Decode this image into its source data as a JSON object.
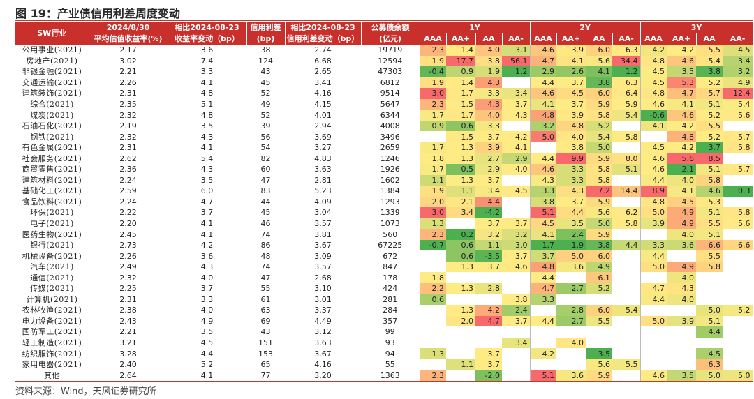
{
  "title": "图 19：产业债信用利差周度变动",
  "source": "资料来源：Wind，天风证券研究所",
  "colors": {
    "header_bg": "#c9302c",
    "accent_rule": "#c0392b",
    "scale_min": "#4cb050",
    "scale_mid": "#ffeb84",
    "scale_max": "#f8696b"
  },
  "headers": {
    "industry": "SW行业",
    "date_line1": "2024/8/30",
    "date_line2": "平均估值收益率(%)",
    "yield_change_line1": "相比2024-08-23",
    "yield_change_line2": "收益率变动（bp）",
    "spread_line1": "信用利差",
    "spread_line2": "(bp)",
    "spread_change_line1": "相比2024-08-23",
    "spread_change_line2": "信用利差变动（bp）",
    "balance_line1": "公募债余额",
    "balance_line2": "(亿元)",
    "tenors": [
      "1Y",
      "2Y",
      "3Y"
    ],
    "ratings": [
      "AAA",
      "AA+",
      "AA",
      "AA-"
    ]
  },
  "rows": [
    {
      "industry": "公用事业(2021)",
      "yield": "2.17",
      "yield_chg": "3.6",
      "spread": "38",
      "spread_chg": "2.74",
      "balance": "19719",
      "m1": [
        "2.3",
        "1.4",
        "4.0",
        "3.1"
      ],
      "m2": [
        "4.6",
        "3.9",
        "6.0",
        "6.3"
      ],
      "m3": [
        "4.2",
        "4.2",
        "5.5",
        "4.5"
      ]
    },
    {
      "industry": "房地产(2021)",
      "yield": "3.02",
      "yield_chg": "7.4",
      "spread": "124",
      "spread_chg": "6.68",
      "balance": "12594",
      "m1": [
        "1.9",
        "17.7",
        "3.8",
        "56.1"
      ],
      "m2": [
        "4.7",
        "4.1",
        "5.6",
        "34.4"
      ],
      "m3": [
        "4.8",
        "4.6",
        "5.4",
        "3.4"
      ]
    },
    {
      "industry": "非银金融(2021)",
      "yield": "2.21",
      "yield_chg": "3.3",
      "spread": "43",
      "spread_chg": "2.65",
      "balance": "47303",
      "m1": [
        "-0.4",
        "0.9",
        "1.9",
        "1.2"
      ],
      "m2": [
        "2.9",
        "2.6",
        "4.1",
        "1.2"
      ],
      "m3": [
        "4.5",
        "3.5",
        "3.8",
        "3.2"
      ]
    },
    {
      "industry": "交通运输(2021)",
      "yield": "2.26",
      "yield_chg": "4.1",
      "spread": "45",
      "spread_chg": "3.41",
      "balance": "6812",
      "m1": [
        "1.9",
        "1.4",
        "4.3",
        ""
      ],
      "m2": [
        "4.4",
        "3.7",
        "3.8",
        "6.3"
      ],
      "m3": [
        "4.5",
        "5.3",
        "5.2",
        "4.9"
      ]
    },
    {
      "industry": "建筑装饰(2021)",
      "yield": "2.31",
      "yield_chg": "4.8",
      "spread": "52",
      "spread_chg": "4.16",
      "balance": "9514",
      "m1": [
        "3.0",
        "1.7",
        "3.3",
        "3.4"
      ],
      "m2": [
        "4.6",
        "4.5",
        "6.0",
        "6.4"
      ],
      "m3": [
        "4.8",
        "4.7",
        "5.7",
        "12.4"
      ]
    },
    {
      "industry": "综合(2021)",
      "yield": "2.35",
      "yield_chg": "5.1",
      "spread": "49",
      "spread_chg": "4.15",
      "balance": "5647",
      "m1": [
        "2.3",
        "1.5",
        "4.3",
        "3.7"
      ],
      "m2": [
        "4.1",
        "3.7",
        "5.9",
        "5.9"
      ],
      "m3": [
        "4.6",
        "4.1",
        "5.1",
        "5.4"
      ]
    },
    {
      "industry": "煤炭(2021)",
      "yield": "2.32",
      "yield_chg": "4.8",
      "spread": "52",
      "spread_chg": "4.01",
      "balance": "6344",
      "m1": [
        "1.7",
        "1.7",
        "4.0",
        "4.3"
      ],
      "m2": [
        "4.8",
        "3.9",
        "5.8",
        "5.4"
      ],
      "m3": [
        "-0.6",
        "4.6",
        "5.2",
        "5.6"
      ]
    },
    {
      "industry": "石油石化(2021)",
      "yield": "2.19",
      "yield_chg": "3.5",
      "spread": "39",
      "spread_chg": "2.94",
      "balance": "4008",
      "m1": [
        "0.9",
        "0.6",
        "3.3",
        ""
      ],
      "m2": [
        "3.2",
        "4.8",
        "5.2",
        ""
      ],
      "m3": [
        "4.1",
        "4.2",
        "5.5",
        ""
      ]
    },
    {
      "industry": "钢铁(2021)",
      "yield": "2.32",
      "yield_chg": "4.3",
      "spread": "56",
      "spread_chg": "3.69",
      "balance": "3496",
      "m1": [
        "",
        "1.5",
        "3.7",
        "4.2"
      ],
      "m2": [
        "5.0",
        "4.0",
        "5.4",
        "5.8"
      ],
      "m3": [
        "",
        "4.8",
        "5.2",
        "5.7"
      ]
    },
    {
      "industry": "有色金属(2021)",
      "yield": "2.31",
      "yield_chg": "4.1",
      "spread": "54",
      "spread_chg": "3.27",
      "balance": "2659",
      "m1": [
        "1.7",
        "1.3",
        "3.9",
        "4.1"
      ],
      "m2": [
        "",
        "3.8",
        "5.0",
        ""
      ],
      "m3": [
        "4.5",
        "4.2",
        "3.7",
        "5.8"
      ]
    },
    {
      "industry": "社会服务(2021)",
      "yield": "2.62",
      "yield_chg": "5.4",
      "spread": "82",
      "spread_chg": "4.83",
      "balance": "1246",
      "m1": [
        "1.8",
        "1.3",
        "2.7",
        "2.9"
      ],
      "m2": [
        "4.4",
        "9.9",
        "5.9",
        "8.0"
      ],
      "m3": [
        "4.6",
        "5.6",
        "8.5",
        ""
      ]
    },
    {
      "industry": "商贸零售(2021)",
      "yield": "2.36",
      "yield_chg": "4.3",
      "spread": "60",
      "spread_chg": "3.63",
      "balance": "1926",
      "m1": [
        "1.7",
        "0.5",
        "2.9",
        "4.0"
      ],
      "m2": [
        "4.6",
        "3.3",
        "5.8",
        "5.1"
      ],
      "m3": [
        "4.6",
        "2.1",
        "5.1",
        "5.7"
      ]
    },
    {
      "industry": "建筑材料(2021)",
      "yield": "2.24",
      "yield_chg": "3.5",
      "spread": "47",
      "spread_chg": "2.81",
      "balance": "1602",
      "m1": [
        "1.1",
        "1.3",
        "3.7",
        ""
      ],
      "m2": [
        "4.3",
        "3.3",
        "5.8",
        ""
      ],
      "m3": [
        "4.4",
        "4.0",
        "5.8",
        ""
      ]
    },
    {
      "industry": "基础化工(2021)",
      "yield": "2.59",
      "yield_chg": "6.0",
      "spread": "83",
      "spread_chg": "5.23",
      "balance": "1384",
      "m1": [
        "1.9",
        "1.1",
        "3.4",
        "4.5"
      ],
      "m2": [
        "3.3",
        "4.3",
        "7.2",
        "14.4"
      ],
      "m3": [
        "8.9",
        "4.1",
        "4.6",
        "0.3"
      ]
    },
    {
      "industry": "食品饮料(2021)",
      "yield": "2.24",
      "yield_chg": "4.7",
      "spread": "44",
      "spread_chg": "4.09",
      "balance": "1293",
      "m1": [
        "2.0",
        "2.1",
        "4.4",
        ""
      ],
      "m2": [
        "3.8",
        "3.7",
        "5.9",
        ""
      ],
      "m3": [
        "4.8",
        "4.5",
        "5.3",
        ""
      ]
    },
    {
      "industry": "环保(2021)",
      "yield": "2.22",
      "yield_chg": "3.7",
      "spread": "45",
      "spread_chg": "3.04",
      "balance": "1339",
      "m1": [
        "3.0",
        "3.4",
        "-4.2",
        ""
      ],
      "m2": [
        "5.1",
        "4.4",
        "5.6",
        "6.2"
      ],
      "m3": [
        "5.0",
        "4.9",
        "5.1",
        "5.8"
      ]
    },
    {
      "industry": "电子(2021)",
      "yield": "2.20",
      "yield_chg": "4.1",
      "spread": "46",
      "spread_chg": "3.57",
      "balance": "1073",
      "m1": [
        "1.3",
        "",
        "3.7",
        "3.7"
      ],
      "m2": [
        "4.5",
        "3.5",
        "5.0",
        "5.8"
      ],
      "m3": [
        "3.9",
        "4.9",
        "5.5",
        "5.6"
      ]
    },
    {
      "industry": "医药生物(2021)",
      "yield": "2.45",
      "yield_chg": "4.1",
      "spread": "74",
      "spread_chg": "3.81",
      "balance": "560",
      "m1": [
        "2.3",
        "0.2",
        "3.2",
        "3.2"
      ],
      "m2": [
        "4.1",
        "2.4",
        "5.9",
        ""
      ],
      "m3": [
        "",
        "4.0",
        "5.1",
        ""
      ]
    },
    {
      "industry": "银行(2021)",
      "yield": "2.73",
      "yield_chg": "4.2",
      "spread": "86",
      "spread_chg": "3.67",
      "balance": "67225",
      "m1": [
        "-0.7",
        "0.6",
        "1.1",
        "3.0"
      ],
      "m2": [
        "1.7",
        "1.9",
        "3.8",
        "4.4"
      ],
      "m3": [
        "3.3",
        "3.6",
        "6.6",
        "6.6"
      ]
    },
    {
      "industry": "机械设备(2021)",
      "yield": "2.26",
      "yield_chg": "3.6",
      "spread": "48",
      "spread_chg": "3.09",
      "balance": "672",
      "m1": [
        "",
        "0.6",
        "-3.5",
        "3.7"
      ],
      "m2": [
        "3.7",
        "5.0",
        "6.0",
        ""
      ],
      "m3": [
        "4.4",
        "",
        "5.5",
        ""
      ]
    },
    {
      "industry": "汽车(2021)",
      "yield": "2.49",
      "yield_chg": "4.3",
      "spread": "74",
      "spread_chg": "3.57",
      "balance": "847",
      "m1": [
        "",
        "1.3",
        "3.7",
        "4.6"
      ],
      "m2": [
        "4.8",
        "3.6",
        "4.9",
        ""
      ],
      "m3": [
        "5.0",
        "4.9",
        "5.8",
        ""
      ]
    },
    {
      "industry": "通信(2021)",
      "yield": "2.32",
      "yield_chg": "4.0",
      "spread": "47",
      "spread_chg": "2.68",
      "balance": "178",
      "m1": [
        "1.8",
        "",
        "",
        ""
      ],
      "m2": [
        "4.4",
        "",
        "6.1",
        ""
      ],
      "m3": [
        "",
        "4.0",
        "",
        ""
      ]
    },
    {
      "industry": "传媒(2021)",
      "yield": "2.25",
      "yield_chg": "3.7",
      "spread": "55",
      "spread_chg": "3.10",
      "balance": "424",
      "m1": [
        "2.2",
        "1.3",
        "2.8",
        ""
      ],
      "m2": [
        "4.7",
        "2.7",
        "5.2",
        ""
      ],
      "m3": [
        "4.7",
        "4.3",
        "",
        ""
      ]
    },
    {
      "industry": "计算机(2021)",
      "yield": "2.31",
      "yield_chg": "3.3",
      "spread": "61",
      "spread_chg": "3.01",
      "balance": "281",
      "m1": [
        "0.6",
        "",
        "",
        "3.8"
      ],
      "m2": [
        "3.3",
        "",
        "",
        ""
      ],
      "m3": [
        "4.4",
        "4.0",
        "",
        ""
      ]
    },
    {
      "industry": "农林牧渔(2021)",
      "yield": "2.38",
      "yield_chg": "4.0",
      "spread": "63",
      "spread_chg": "3.37",
      "balance": "284",
      "m1": [
        "",
        "1.3",
        "4.2",
        "2.4"
      ],
      "m2": [
        "",
        "2.8",
        "6.0",
        "5.4"
      ],
      "m3": [
        "",
        "",
        "5.0",
        "5.2"
      ]
    },
    {
      "industry": "电力设备(2021)",
      "yield": "2.43",
      "yield_chg": "4.9",
      "spread": "69",
      "spread_chg": "4.49",
      "balance": "357",
      "m1": [
        "",
        "2.0",
        "4.7",
        "3.7"
      ],
      "m2": [
        "4.4",
        "2.7",
        "5.5",
        ""
      ],
      "m3": [
        "5.0",
        "3.9",
        "5.1",
        ""
      ]
    },
    {
      "industry": "国防军工(2021)",
      "yield": "2.21",
      "yield_chg": "3.5",
      "spread": "43",
      "spread_chg": "3.12",
      "balance": "99",
      "m1": [
        "",
        "",
        "",
        ""
      ],
      "m2": [
        "",
        "",
        "",
        ""
      ],
      "m3": [
        "",
        "",
        "4.4",
        ""
      ]
    },
    {
      "industry": "轻工制造(2021)",
      "yield": "3.21",
      "yield_chg": "4.5",
      "spread": "151",
      "spread_chg": "3.63",
      "balance": "93",
      "m1": [
        "",
        "",
        "",
        "3.4"
      ],
      "m2": [
        "",
        "4.0",
        "",
        ""
      ],
      "m3": [
        "",
        "",
        "",
        ""
      ]
    },
    {
      "industry": "纺织服饰(2021)",
      "yield": "3.28",
      "yield_chg": "4.4",
      "spread": "153",
      "spread_chg": "3.67",
      "balance": "94",
      "m1": [
        "1.3",
        "",
        "3.7",
        ""
      ],
      "m2": [
        "4.2",
        "",
        "3.5",
        ""
      ],
      "m3": [
        "",
        "",
        "4.5",
        ""
      ]
    },
    {
      "industry": "家用电器(2021)",
      "yield": "2.40",
      "yield_chg": "5.2",
      "spread": "65",
      "spread_chg": "4.16",
      "balance": "55",
      "m1": [
        "",
        "1.1",
        "3.7",
        ""
      ],
      "m2": [
        "",
        "",
        "5.6",
        "5.5"
      ],
      "m3": [
        "",
        "",
        "6.3",
        ""
      ]
    },
    {
      "industry": "其他",
      "yield": "2.64",
      "yield_chg": "4.1",
      "spread": "77",
      "spread_chg": "3.20",
      "balance": "1363",
      "m1": [
        "2.3",
        "",
        "-2.0",
        ""
      ],
      "m2": [
        "5.1",
        "3.6",
        "5.9",
        ""
      ],
      "m3": [
        "4.6",
        "3.5",
        "5.0",
        "5.0"
      ]
    }
  ]
}
